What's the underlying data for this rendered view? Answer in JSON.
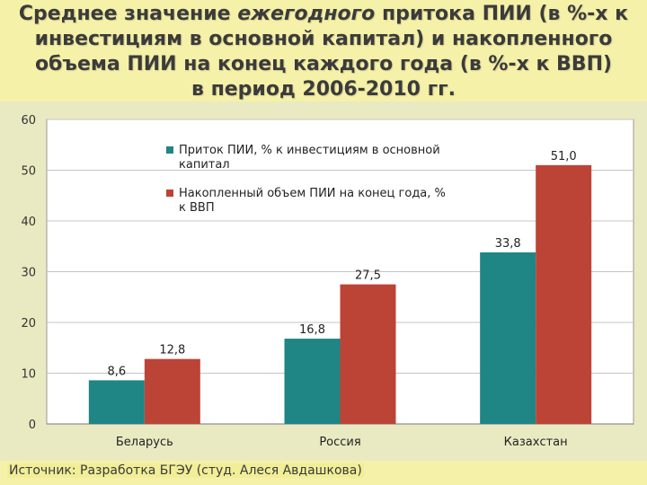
{
  "title": {
    "line1_plain": "Среднее значение ",
    "line1_em": "ежегодного",
    "line1_rest": " притока ПИИ (в %-х к",
    "line2": "инвестициям в основной капитал) и накопленного",
    "line3": "объема ПИИ на конец каждого года (в %-х к ВВП)",
    "line4": "в период 2006-2010 гг."
  },
  "source": "Источник: Разработка БГЭУ (студ. Алеся Авдашкова)",
  "colors": {
    "series1": "#1f8585",
    "series2": "#bc4437",
    "gridline": "#c4c4c4",
    "plot_bg": "#ffffff",
    "frame_bg": "#e9eac1"
  },
  "chart_data": {
    "type": "bar",
    "categories": [
      "Беларусь",
      "Россия",
      "Казахстан"
    ],
    "series": [
      {
        "name": "Приток ПИИ, % к инвестициям в основной капитал",
        "name_lines": [
          "Приток ПИИ, % к инвестициям в основной",
          "капитал"
        ],
        "values": [
          8.6,
          16.8,
          33.8
        ],
        "labels": [
          "8,6",
          "16,8",
          "33,8"
        ],
        "color": "#1f8585"
      },
      {
        "name": "Накопленный объем ПИИ на конец года, % к ВВП",
        "name_lines": [
          "Накопленный объем ПИИ на конец года, %",
          "к ВВП"
        ],
        "values": [
          12.8,
          27.5,
          51.0
        ],
        "labels": [
          "12,8",
          "27,5",
          "51,0"
        ],
        "color": "#bc4437"
      }
    ],
    "ylim": [
      0,
      60
    ],
    "yticks": [
      0,
      10,
      20,
      30,
      40,
      50,
      60
    ],
    "grid": true,
    "legend": "top-left"
  }
}
